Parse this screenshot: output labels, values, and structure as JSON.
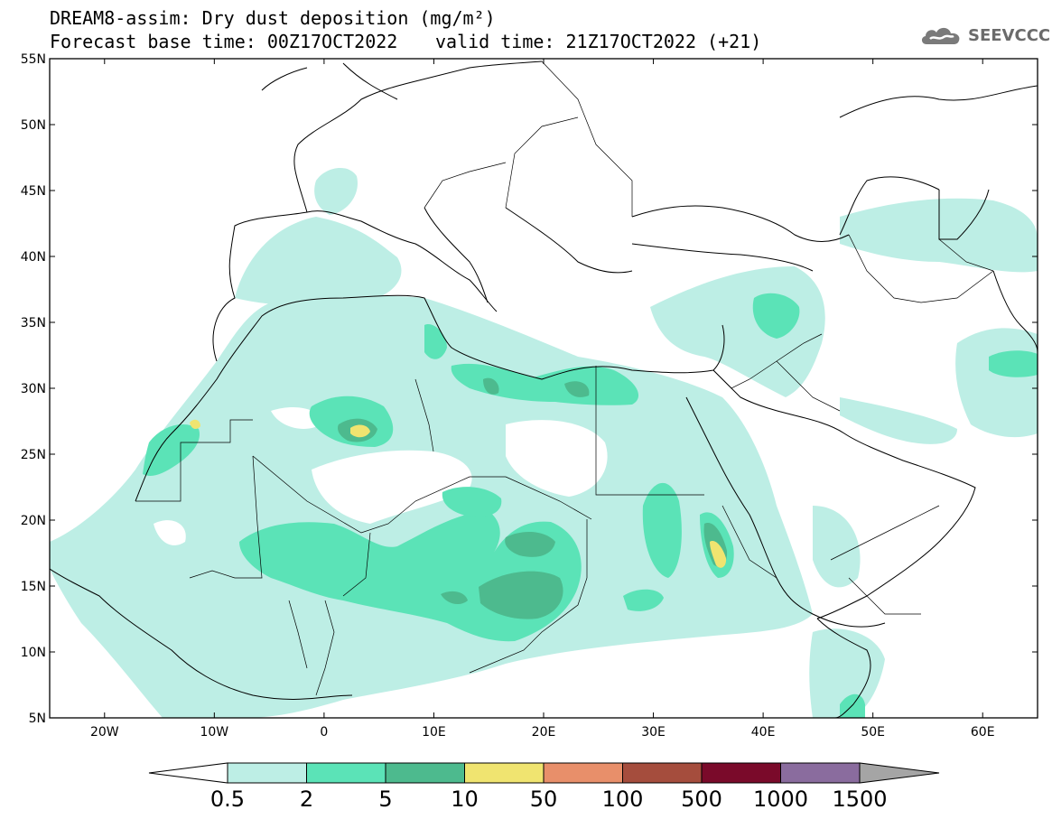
{
  "title": {
    "line1": "DREAM8-assim: Dry dust deposition (mg/m²)",
    "line2": "Forecast base time: 00Z17OCT2022",
    "valid": "valid time: 21Z17OCT2022 (+21)"
  },
  "logo": {
    "text": "SEEVCCC",
    "icon": "cloud-icon"
  },
  "axes": {
    "lat_labels": [
      "55N",
      "50N",
      "45N",
      "40N",
      "35N",
      "30N",
      "25N",
      "20N",
      "15N",
      "10N",
      "5N"
    ],
    "lon_labels": [
      "20W",
      "10W",
      "0",
      "10E",
      "20E",
      "30E",
      "40E",
      "50E",
      "60E"
    ],
    "lon_range": [
      -25,
      65
    ],
    "lat_range": [
      5,
      55
    ]
  },
  "colorbar": {
    "labels": [
      "0.5",
      "2",
      "5",
      "10",
      "50",
      "100",
      "500",
      "1000",
      "1500"
    ],
    "colors": [
      "#ffffff",
      "#bdeee5",
      "#5be3b7",
      "#4dba8e",
      "#f0e470",
      "#e88f6a",
      "#a54d3d",
      "#7a0a2a",
      "#8a6c9e",
      "#a5a5a5"
    ]
  }
}
